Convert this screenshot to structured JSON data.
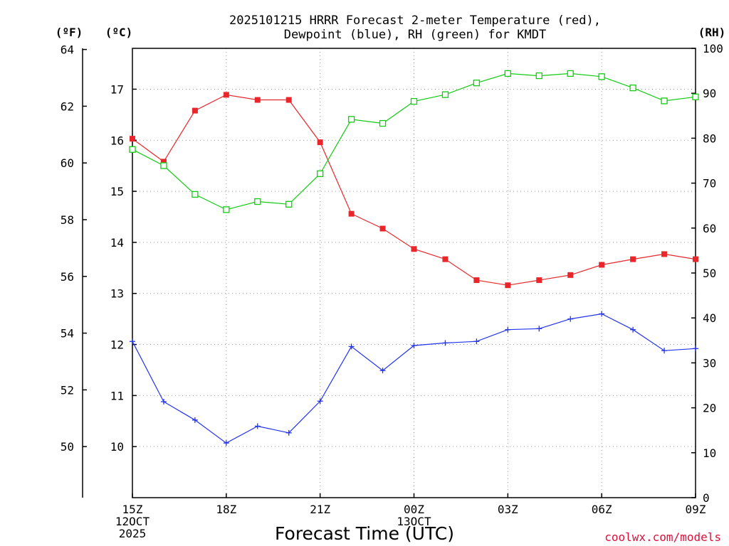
{
  "title": {
    "line1": "2025101215 HRRR Forecast 2-meter Temperature (red),",
    "line2": "Dewpoint (blue), RH (green) for KMDT"
  },
  "units": {
    "f": "(ºF)",
    "c": "(ºC)",
    "rh": "(RH)"
  },
  "credit": "coolwx.com/models",
  "colors": {
    "temp": "#e8272c",
    "dew": "#2233ee",
    "rh": "#11cc11"
  },
  "chart_data": {
    "type": "line",
    "title": "2025101215 HRRR Forecast 2-meter Temperature (red), Dewpoint (blue), RH (green) for KMDT",
    "xlabel": "Forecast Time (UTC)",
    "x": [
      0,
      1,
      2,
      3,
      4,
      5,
      6,
      7,
      8,
      9,
      10,
      11,
      12,
      13,
      14,
      15,
      16,
      17,
      18
    ],
    "xlim": [
      0,
      18
    ],
    "x_ticks": [
      {
        "x": 0,
        "lines": [
          "15Z",
          "12OCT",
          "2025"
        ]
      },
      {
        "x": 3,
        "lines": [
          "18Z"
        ]
      },
      {
        "x": 6,
        "lines": [
          "21Z"
        ]
      },
      {
        "x": 9,
        "lines": [
          "00Z",
          "13OCT"
        ]
      },
      {
        "x": 12,
        "lines": [
          "03Z"
        ]
      },
      {
        "x": 15,
        "lines": [
          "06Z"
        ]
      },
      {
        "x": 18,
        "lines": [
          "09Z"
        ]
      }
    ],
    "ylim_c": [
      9.0,
      17.8
    ],
    "yticks_c": [
      "10",
      "11",
      "12",
      "13",
      "14",
      "15",
      "16",
      "17"
    ],
    "ylim_f": [
      48.2,
      64.04
    ],
    "yticks_f": [
      "50",
      "52",
      "54",
      "56",
      "58",
      "60",
      "62",
      "64"
    ],
    "ylim_rh": [
      0,
      100
    ],
    "yticks_rh": [
      "0",
      "10",
      "20",
      "30",
      "40",
      "50",
      "60",
      "70",
      "80",
      "90",
      "100"
    ],
    "series": [
      {
        "name": "2-meter Temperature",
        "color": "red",
        "axis": "C",
        "marker": "filled-square",
        "values": [
          16.03,
          15.58,
          16.58,
          16.89,
          16.79,
          16.79,
          15.96,
          14.56,
          14.27,
          13.87,
          13.67,
          13.26,
          13.16,
          13.26,
          13.36,
          13.56,
          13.67,
          13.77,
          13.67
        ]
      },
      {
        "name": "Dewpoint",
        "color": "blue",
        "axis": "C",
        "marker": "plus",
        "values": [
          12.06,
          10.88,
          10.52,
          10.07,
          10.4,
          10.27,
          10.89,
          11.96,
          11.49,
          11.98,
          12.03,
          12.06,
          12.29,
          12.31,
          12.5,
          12.6,
          12.29,
          11.88,
          11.92
        ]
      },
      {
        "name": "RH",
        "color": "green",
        "axis": "RH",
        "marker": "open-square",
        "values": [
          77.5,
          73.9,
          67.5,
          64.1,
          65.9,
          65.3,
          72.1,
          84.2,
          83.3,
          88.2,
          89.7,
          92.3,
          94.4,
          93.9,
          94.4,
          93.7,
          91.2,
          88.3,
          89.2
        ]
      }
    ],
    "grid": true
  }
}
